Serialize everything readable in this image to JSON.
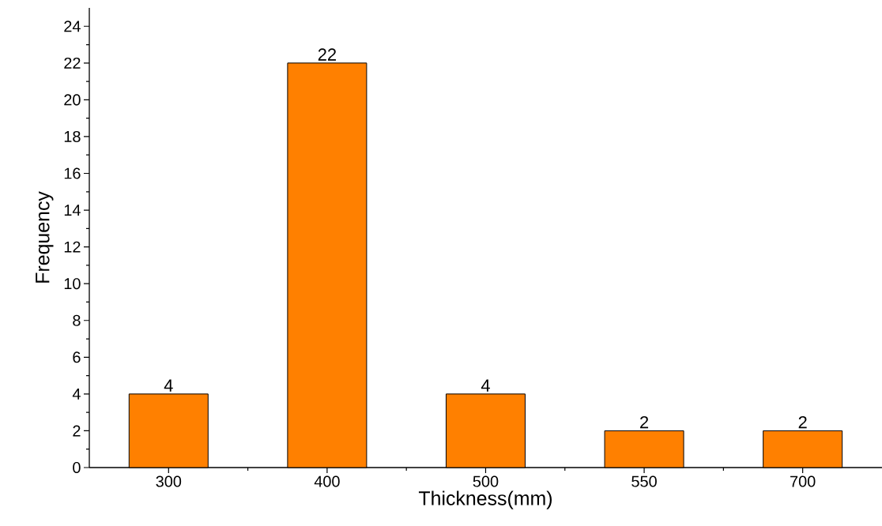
{
  "chart_data": {
    "type": "bar",
    "xlabel": "Thickness(mm)",
    "ylabel": "Frequency",
    "categories": [
      "300",
      "400",
      "500",
      "550",
      "700"
    ],
    "values": [
      4,
      22,
      4,
      2,
      2
    ],
    "color": "#ff8000",
    "ylim": [
      0,
      25
    ],
    "yticks": [
      0,
      2,
      4,
      6,
      8,
      10,
      12,
      14,
      16,
      18,
      20,
      22,
      24
    ],
    "data_labels": true
  }
}
